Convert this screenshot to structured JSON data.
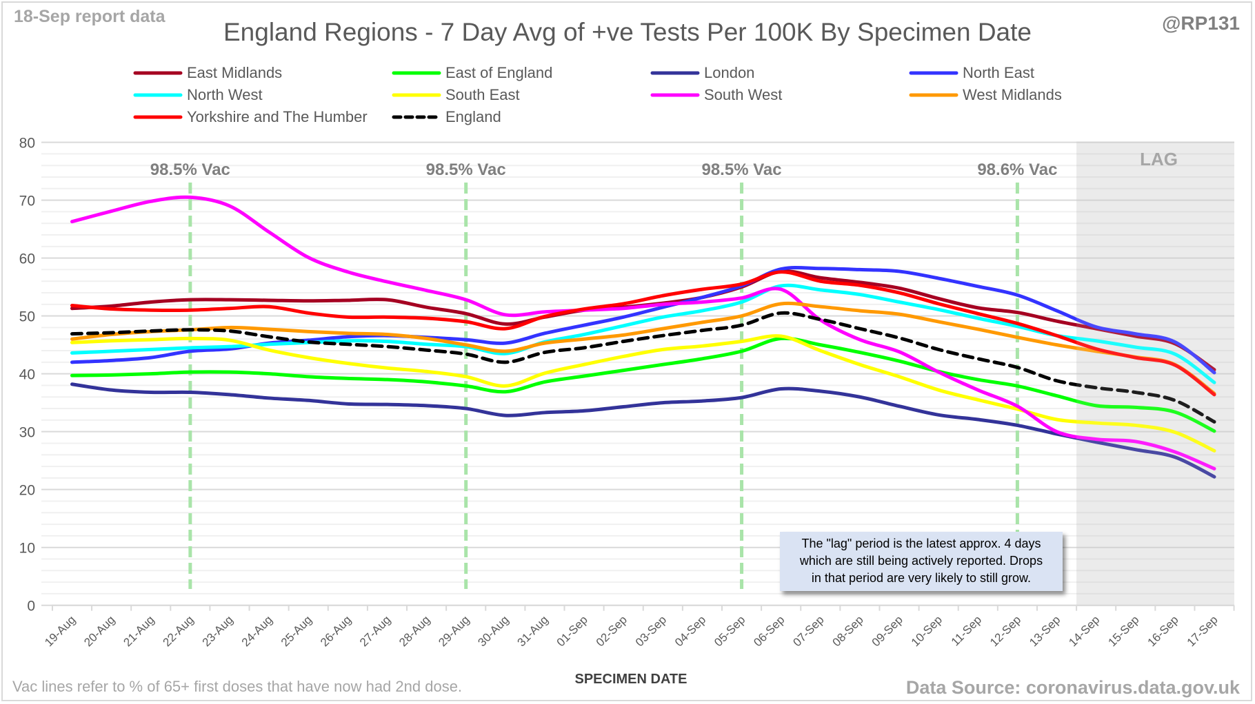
{
  "header": {
    "report_date": "18-Sep report data",
    "handle": "@RP131",
    "title": "England Regions - 7 Day Avg of +ve Tests Per 100K By Specimen Date"
  },
  "footer": {
    "footnote": "Vac lines refer to % of 65+ first doses that have now had 2nd dose.",
    "source": "Data Source: coronavirus.data.gov.uk"
  },
  "note_box": {
    "lines": [
      "The \"lag\" period is the latest approx. 4 days",
      "which are still being actively reported.  Drops",
      "in that period are very likely to still grow."
    ]
  },
  "chart_data": {
    "type": "line",
    "title": "England Regions - 7 Day Avg of +ve Tests Per 100K By Specimen Date",
    "xlabel": "SPECIMEN DATE",
    "ylabel": "",
    "ylim": [
      0,
      80
    ],
    "yticks": [
      0,
      10,
      20,
      30,
      40,
      50,
      60,
      70,
      80
    ],
    "grid": true,
    "legend_position": "top",
    "x": [
      "19-Aug",
      "20-Aug",
      "21-Aug",
      "22-Aug",
      "23-Aug",
      "24-Aug",
      "25-Aug",
      "26-Aug",
      "27-Aug",
      "28-Aug",
      "29-Aug",
      "30-Aug",
      "31-Aug",
      "01-Sep",
      "02-Sep",
      "03-Sep",
      "04-Sep",
      "05-Sep",
      "06-Sep",
      "07-Sep",
      "08-Sep",
      "09-Sep",
      "10-Sep",
      "11-Sep",
      "12-Sep",
      "13-Sep",
      "14-Sep",
      "15-Sep",
      "16-Sep",
      "17-Sep"
    ],
    "series": [
      {
        "name": "East Midlands",
        "color": "#a50021",
        "dashed": false,
        "values": [
          51.3,
          51.7,
          52.4,
          52.8,
          52.8,
          52.7,
          52.6,
          52.7,
          52.8,
          51.5,
          50.4,
          48.6,
          49.8,
          51.0,
          51.5,
          52.2,
          53.2,
          55.0,
          57.7,
          56.6,
          55.8,
          54.8,
          53.0,
          51.4,
          50.6,
          49.1,
          47.8,
          46.5,
          45.2,
          40.7
        ]
      },
      {
        "name": "East of England",
        "color": "#00ff00",
        "dashed": false,
        "values": [
          39.7,
          39.8,
          40.0,
          40.3,
          40.3,
          40.0,
          39.5,
          39.2,
          39.0,
          38.6,
          37.9,
          36.9,
          38.6,
          39.6,
          40.6,
          41.6,
          42.6,
          43.9,
          46.1,
          45.0,
          43.7,
          42.2,
          40.4,
          39.0,
          37.9,
          36.2,
          34.5,
          34.2,
          33.4,
          30.1
        ]
      },
      {
        "name": "London",
        "color": "#333399",
        "dashed": false,
        "values": [
          38.2,
          37.2,
          36.8,
          36.8,
          36.4,
          35.8,
          35.4,
          34.8,
          34.7,
          34.5,
          34.0,
          32.8,
          33.3,
          33.6,
          34.3,
          35.0,
          35.3,
          35.9,
          37.4,
          37.0,
          36.0,
          34.4,
          32.9,
          32.1,
          31.1,
          29.6,
          28.2,
          26.9,
          25.6,
          22.2
        ]
      },
      {
        "name": "North East",
        "color": "#3333ff",
        "dashed": false,
        "values": [
          42.0,
          42.3,
          42.8,
          43.9,
          44.3,
          45.3,
          45.8,
          46.4,
          46.6,
          46.3,
          45.9,
          45.3,
          47.0,
          48.4,
          49.8,
          51.5,
          53.2,
          55.2,
          58.1,
          58.2,
          58.0,
          57.7,
          56.5,
          55.1,
          53.6,
          50.9,
          48.1,
          46.9,
          45.5,
          40.2
        ]
      },
      {
        "name": "North West",
        "color": "#00ffff",
        "dashed": false,
        "values": [
          43.6,
          43.9,
          44.2,
          44.5,
          44.7,
          45.1,
          45.4,
          45.7,
          45.6,
          45.1,
          44.7,
          43.5,
          45.5,
          46.8,
          48.3,
          49.8,
          50.9,
          52.4,
          55.2,
          54.5,
          53.7,
          52.4,
          51.1,
          49.6,
          48.2,
          46.6,
          45.7,
          44.6,
          43.4,
          38.5
        ]
      },
      {
        "name": "South East",
        "color": "#ffff00",
        "dashed": false,
        "values": [
          45.4,
          45.7,
          45.9,
          46.1,
          45.8,
          44.1,
          42.8,
          41.8,
          41.0,
          40.4,
          39.5,
          37.9,
          40.1,
          41.6,
          43.0,
          44.2,
          44.8,
          45.6,
          46.5,
          44.0,
          41.6,
          39.5,
          37.2,
          35.5,
          33.9,
          32.1,
          31.5,
          31.1,
          29.9,
          26.7
        ]
      },
      {
        "name": "South West",
        "color": "#ff00ff",
        "dashed": false,
        "values": [
          66.3,
          68.1,
          69.8,
          70.5,
          69.0,
          64.5,
          60.1,
          57.6,
          55.9,
          54.4,
          52.8,
          50.2,
          50.7,
          51.0,
          51.3,
          52.0,
          52.4,
          53.1,
          54.6,
          49.3,
          45.9,
          43.8,
          40.3,
          37.2,
          34.4,
          30.0,
          28.7,
          28.3,
          26.5,
          23.6
        ]
      },
      {
        "name": "West Midlands",
        "color": "#ff9900",
        "dashed": false,
        "values": [
          46.0,
          46.8,
          47.3,
          47.6,
          48.0,
          47.7,
          47.3,
          47.0,
          46.8,
          46.1,
          45.0,
          43.9,
          45.3,
          46.0,
          46.7,
          47.8,
          48.9,
          50.0,
          52.1,
          51.6,
          50.9,
          50.3,
          49.0,
          47.7,
          46.3,
          45.0,
          43.9,
          42.9,
          41.6,
          36.6
        ]
      },
      {
        "name": "Yorkshire and The Humber",
        "color": "#ff0000",
        "dashed": false,
        "values": [
          51.8,
          51.2,
          51.0,
          51.0,
          51.3,
          51.6,
          50.5,
          49.8,
          49.8,
          49.6,
          49.0,
          47.8,
          49.9,
          51.2,
          52.1,
          53.5,
          54.6,
          55.5,
          57.6,
          56.0,
          55.3,
          54.0,
          52.1,
          50.4,
          48.7,
          46.6,
          44.3,
          42.8,
          41.5,
          36.4
        ]
      },
      {
        "name": "England",
        "color": "#000000",
        "dashed": true,
        "values": [
          46.9,
          47.1,
          47.4,
          47.6,
          47.4,
          46.4,
          45.5,
          45.1,
          44.7,
          44.1,
          43.4,
          42.0,
          43.7,
          44.5,
          45.6,
          46.6,
          47.5,
          48.4,
          50.5,
          49.4,
          47.8,
          46.2,
          44.2,
          42.6,
          41.1,
          38.8,
          37.6,
          36.8,
          35.4,
          31.7
        ]
      }
    ],
    "vac_lines": [
      {
        "x": "22-Aug",
        "label": "98.5% Vac"
      },
      {
        "x": "29-Aug",
        "label": "98.5% Vac"
      },
      {
        "x": "05-Sep",
        "label": "98.5% Vac"
      },
      {
        "x": "12-Sep",
        "label": "98.6% Vac"
      }
    ],
    "lag_region": {
      "from": "14-Sep",
      "to": "17-Sep",
      "label": "LAG"
    },
    "colors": {
      "vac_line": "#a9e4a9",
      "lag_fill": "#e8e8e8",
      "gridline": "#d9d9d9",
      "note_fill": "#dae3f3"
    }
  }
}
